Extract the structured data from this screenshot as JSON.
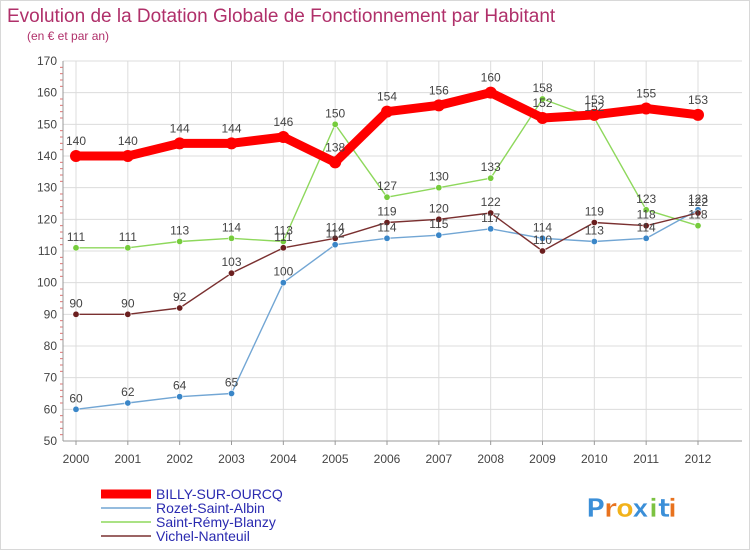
{
  "chart_data": {
    "type": "line",
    "title": "Evolution de la Dotation Globale de Fonctionnement par Habitant",
    "subtitle": "(en € et par an)",
    "xlabel": "",
    "ylabel": "",
    "ylim": [
      50,
      170
    ],
    "yticks": [
      50,
      60,
      70,
      80,
      90,
      100,
      110,
      120,
      130,
      140,
      150,
      160,
      170
    ],
    "x": [
      "2000",
      "2001",
      "2002",
      "2003",
      "2004",
      "2005",
      "2006",
      "2007",
      "2008",
      "2009",
      "2010",
      "2011",
      "2012"
    ],
    "grid": true,
    "legend_position": "bottom-left",
    "series": [
      {
        "name": "BILLY-SUR-OURCQ",
        "color": "#ff0000",
        "marker_color": "#ff0000",
        "width": "thick",
        "values": [
          140,
          140,
          144,
          144,
          146,
          138,
          154,
          156,
          160,
          152,
          153,
          155,
          153
        ]
      },
      {
        "name": "Rozet-Saint-Albin",
        "color": "#72a6d4",
        "marker_color": "#3a86c8",
        "width": "thin",
        "values": [
          60,
          62,
          64,
          65,
          100,
          112,
          114,
          115,
          117,
          114,
          113,
          114,
          123
        ]
      },
      {
        "name": "Saint-Rémy-Blanzy",
        "color": "#8ed85c",
        "marker_color": "#76cc3c",
        "width": "thin",
        "values": [
          111,
          111,
          113,
          114,
          113,
          150,
          127,
          130,
          133,
          158,
          152,
          123,
          118
        ]
      },
      {
        "name": "Vichel-Nanteuil",
        "color": "#7a3030",
        "marker_color": "#6b1f1f",
        "width": "thin",
        "values": [
          90,
          90,
          92,
          103,
          111,
          114,
          119,
          120,
          122,
          110,
          119,
          118,
          122
        ]
      }
    ]
  },
  "logo": {
    "text": "Proxiti",
    "letters": [
      "P",
      "r",
      "o",
      "x",
      "i",
      "t",
      "i"
    ],
    "colors": [
      "#3b8fd8",
      "#e8721e",
      "#f2b21a",
      "#3b8fd8",
      "#7cc242",
      "#3b8fd8",
      "#e8721e"
    ]
  }
}
